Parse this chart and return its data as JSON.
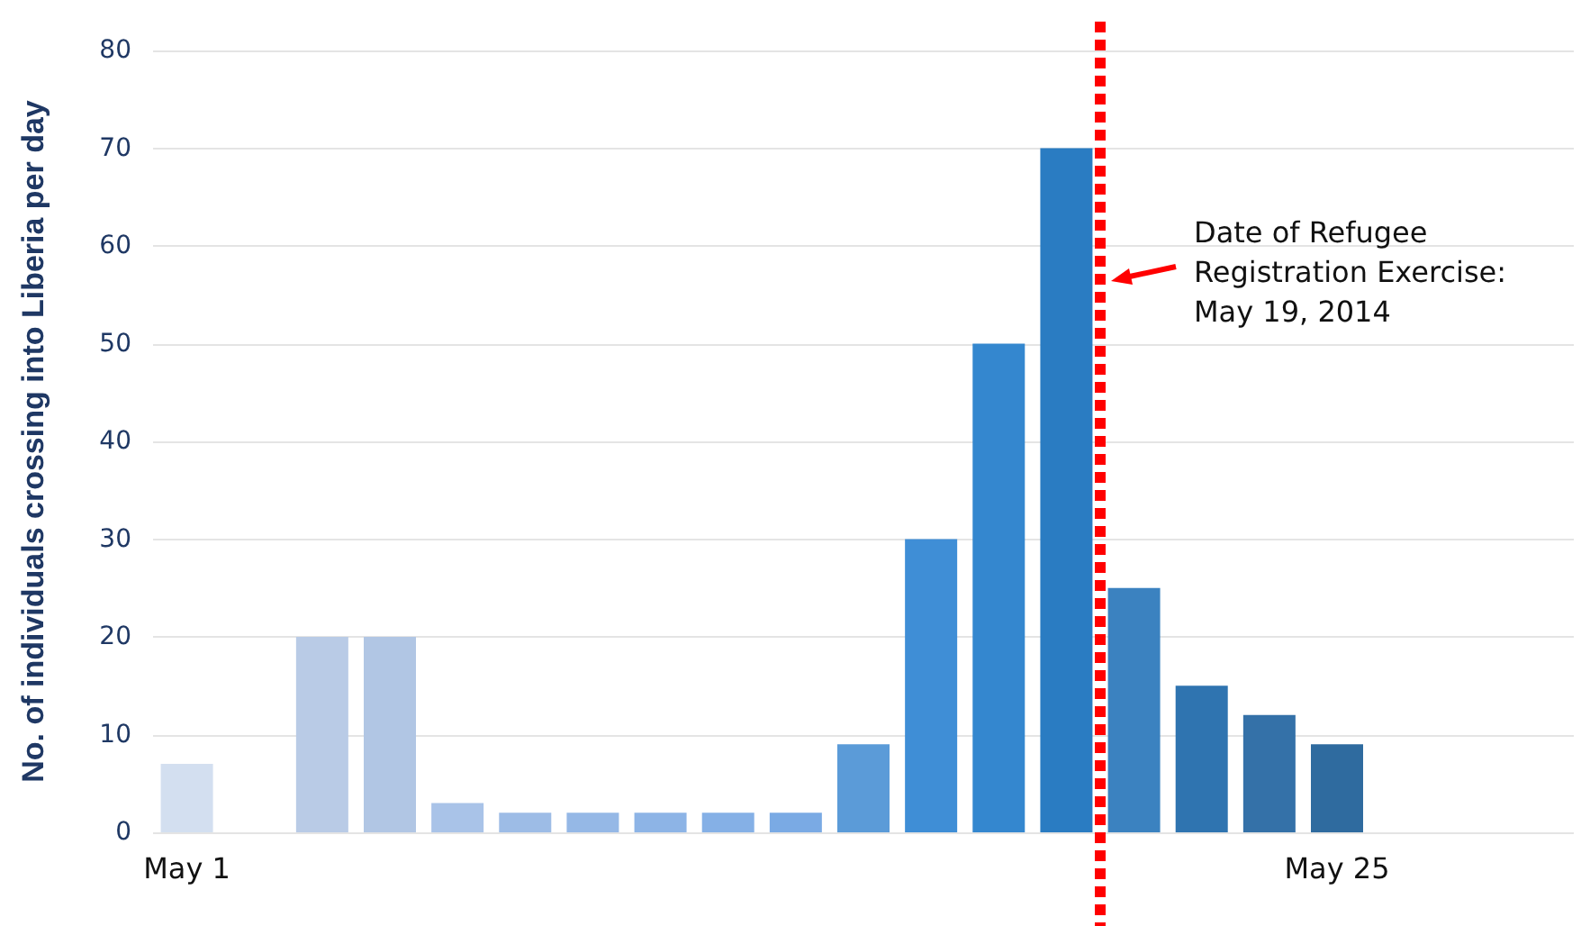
{
  "chart_data": {
    "type": "bar",
    "ylabel": "No. of individuals crossing into Liberia per day",
    "categories": [
      "May 1",
      null,
      null,
      null,
      null,
      null,
      null,
      null,
      null,
      null,
      null,
      null,
      null,
      null,
      null,
      null,
      null,
      "May 25",
      null,
      null,
      null
    ],
    "values": [
      7,
      null,
      20,
      20,
      3,
      2,
      2,
      2,
      2,
      2,
      9,
      30,
      50,
      70,
      25,
      15,
      12,
      9,
      null,
      null,
      null
    ],
    "colors": [
      "#d3dff0",
      "#d3dff0",
      "#b9cbe6",
      "#b1c6e4",
      "#a9c3e8",
      "#9dbce6",
      "#95b8e6",
      "#8db4e6",
      "#85b0e6",
      "#7aaae4",
      "#5b9bd8",
      "#3f8ed6",
      "#3487cf",
      "#2a7cc2",
      "#3b82c0",
      "#2f74b0",
      "#3471a8",
      "#2f6b9f",
      "#2f6b9f",
      "#2f6b9f",
      "#2f6b9f"
    ],
    "ylim": [
      0,
      80
    ],
    "yticks": [
      0,
      10,
      20,
      30,
      40,
      50,
      60,
      70,
      80
    ],
    "grid": "y",
    "annotations": [
      "Date of Refugee\nRegistration Exercise:\nMay 19, 2014"
    ]
  }
}
